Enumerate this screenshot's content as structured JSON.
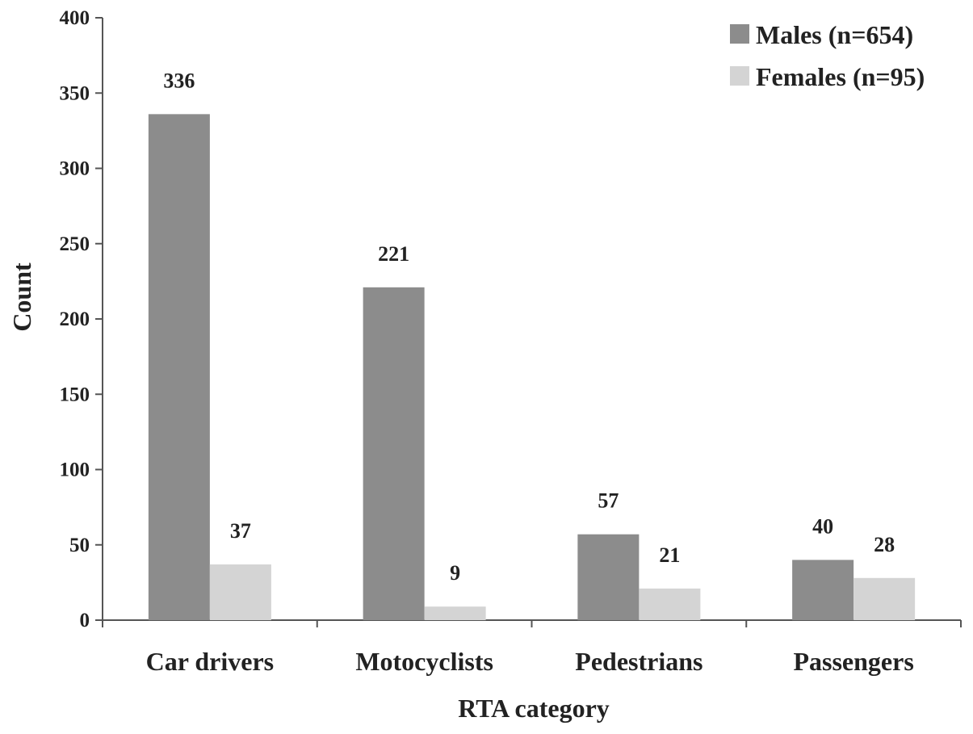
{
  "chart_data": {
    "type": "bar",
    "title": "",
    "xlabel": "RTA category",
    "ylabel": "Count",
    "ylim": [
      0,
      400
    ],
    "yticks": [
      0,
      50,
      100,
      150,
      200,
      250,
      300,
      350,
      400
    ],
    "categories": [
      "Car drivers",
      "Motocyclists",
      "Pedestrians",
      "Passengers"
    ],
    "series": [
      {
        "name": "Males (n=654)",
        "color": "#8c8c8c",
        "values": [
          336,
          221,
          57,
          40
        ]
      },
      {
        "name": "Females (n=95)",
        "color": "#d4d4d4",
        "values": [
          37,
          9,
          21,
          28
        ]
      }
    ],
    "grid": false,
    "legend": "top-right"
  }
}
